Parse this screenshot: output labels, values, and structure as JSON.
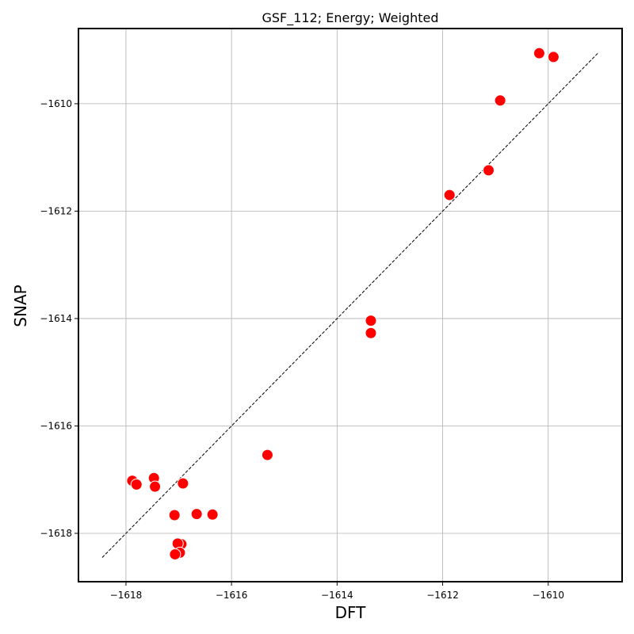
{
  "chart_data": {
    "type": "scatter",
    "title": "GSF_112; Energy; Weighted",
    "xlabel": "DFT",
    "ylabel": "SNAP",
    "xlim": [
      -1618.9,
      -1608.6
    ],
    "ylim": [
      -1618.9,
      -1608.6
    ],
    "xticks": [
      -1618,
      -1616,
      -1614,
      -1612,
      -1610
    ],
    "yticks": [
      -1618,
      -1616,
      -1614,
      -1612,
      -1610
    ],
    "xtick_labels": [
      "−1618",
      "−1616",
      "−1614",
      "−1612",
      "−1610"
    ],
    "ytick_labels": [
      "−1618",
      "−1616",
      "−1614",
      "−1612",
      "−1610"
    ],
    "grid": true,
    "marker_color": "#ff0000",
    "reference_line": {
      "style": "dashed",
      "color": "#000000",
      "from": [
        -1618.45,
        -1618.45
      ],
      "to": [
        -1609.05,
        -1609.05
      ]
    },
    "points": [
      {
        "x": -1617.88,
        "y": -1617.02
      },
      {
        "x": -1617.8,
        "y": -1617.09
      },
      {
        "x": -1617.47,
        "y": -1616.97
      },
      {
        "x": -1617.45,
        "y": -1617.13
      },
      {
        "x": -1616.92,
        "y": -1617.07
      },
      {
        "x": -1617.08,
        "y": -1617.66
      },
      {
        "x": -1616.66,
        "y": -1617.64
      },
      {
        "x": -1616.36,
        "y": -1617.65
      },
      {
        "x": -1616.95,
        "y": -1618.2
      },
      {
        "x": -1617.02,
        "y": -1618.19
      },
      {
        "x": -1616.98,
        "y": -1618.36
      },
      {
        "x": -1617.07,
        "y": -1618.39
      },
      {
        "x": -1615.32,
        "y": -1616.54
      },
      {
        "x": -1613.36,
        "y": -1614.04
      },
      {
        "x": -1613.36,
        "y": -1614.27
      },
      {
        "x": -1611.87,
        "y": -1611.7
      },
      {
        "x": -1611.13,
        "y": -1611.24
      },
      {
        "x": -1610.91,
        "y": -1609.94
      },
      {
        "x": -1610.17,
        "y": -1609.06
      },
      {
        "x": -1609.9,
        "y": -1609.13
      }
    ]
  }
}
